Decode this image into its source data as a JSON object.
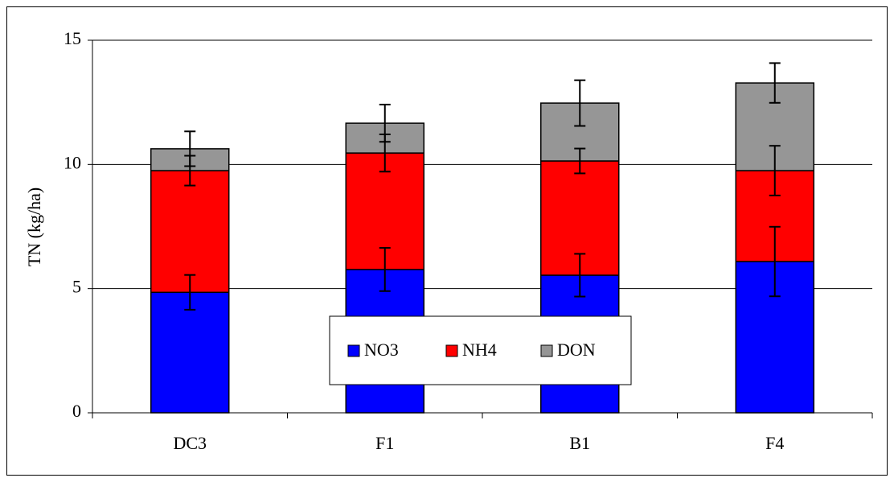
{
  "chart_data": {
    "type": "stacked-bar",
    "y_label": "TN  (kg/ha)",
    "categories": [
      "DC3",
      "F1",
      "B1",
      "F4"
    ],
    "series": [
      {
        "name": "NO3",
        "color": "#0000ff",
        "values": [
          4.85,
          5.77,
          5.54,
          6.09
        ],
        "errors": [
          0.7,
          0.87,
          0.86,
          1.4
        ]
      },
      {
        "name": "NH4",
        "color": "#ff0000",
        "values": [
          4.9,
          4.69,
          4.6,
          3.66
        ],
        "errors": [
          0.6,
          0.75,
          0.5,
          1.0
        ]
      },
      {
        "name": "DON",
        "color": "#969696",
        "values": [
          0.88,
          1.2,
          2.33,
          3.53
        ],
        "errors": [
          0.7,
          0.75,
          0.92,
          0.8
        ]
      }
    ],
    "ylim": [
      0,
      15
    ],
    "yticks": [
      0,
      5,
      10,
      15
    ],
    "grid": true
  }
}
